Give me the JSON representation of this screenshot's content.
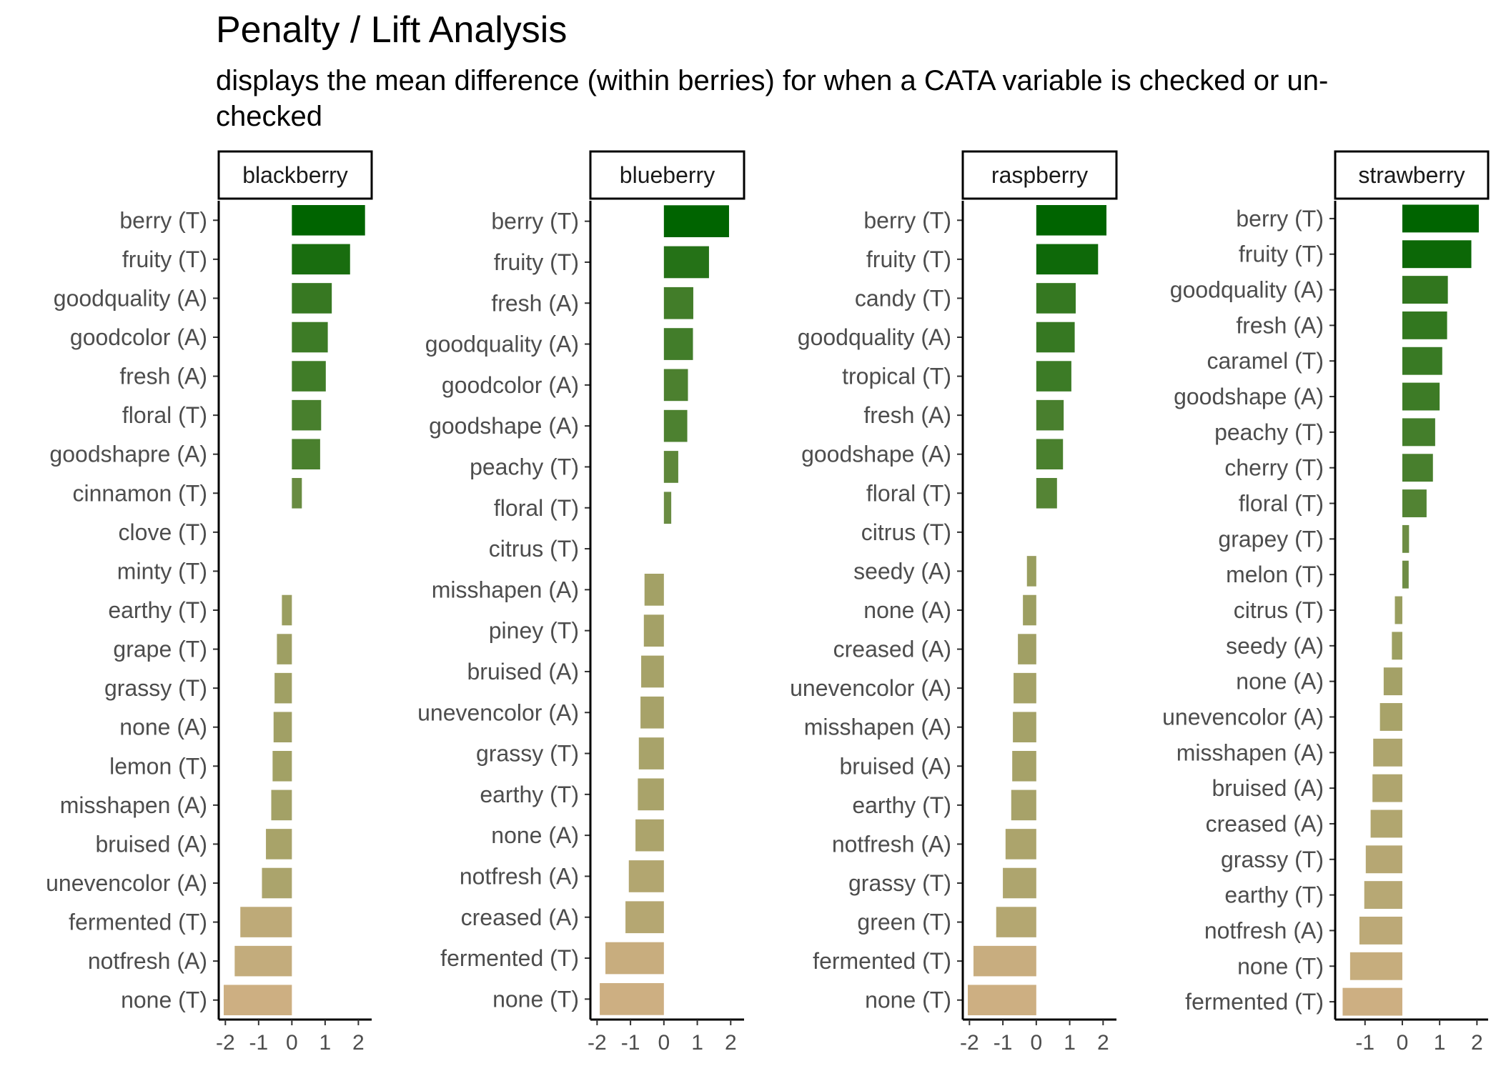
{
  "title": "Penalty / Lift Analysis",
  "subtitle": "displays the mean difference (within berries) for when a CATA variable is checked or un-checked",
  "chart_data": [
    {
      "type": "bar",
      "orientation": "horizontal",
      "panel": "blackberry",
      "xlim": [
        -2.2,
        2.4
      ],
      "x_ticks": [
        -2,
        -1,
        0,
        1,
        2
      ],
      "categories": [
        "berry (T)",
        "fruity (T)",
        "goodquality (A)",
        "goodcolor (A)",
        "fresh (A)",
        "floral (T)",
        "goodshapre (A)",
        "cinnamon (T)",
        "clove (T)",
        "minty (T)",
        "earthy (T)",
        "grape (T)",
        "grassy (T)",
        "none (A)",
        "lemon (T)",
        "misshapen (A)",
        "bruised (A)",
        "unevencolor (A)",
        "fermented (T)",
        "notfresh (A)",
        "none (T)"
      ],
      "values": [
        2.2,
        1.75,
        1.2,
        1.08,
        1.02,
        0.88,
        0.85,
        0.3,
        0,
        0,
        -0.3,
        -0.45,
        -0.52,
        -0.55,
        -0.58,
        -0.62,
        -0.78,
        -0.9,
        -1.55,
        -1.72,
        -2.05
      ]
    },
    {
      "type": "bar",
      "orientation": "horizontal",
      "panel": "blueberry",
      "xlim": [
        -2.2,
        2.4
      ],
      "x_ticks": [
        -2,
        -1,
        0,
        1,
        2
      ],
      "categories": [
        "berry (T)",
        "fruity (T)",
        "fresh (A)",
        "goodquality (A)",
        "goodcolor (A)",
        "goodshape (A)",
        "peachy (T)",
        "floral (T)",
        "citrus (T)",
        "misshapen (A)",
        "piney (T)",
        "bruised (A)",
        "unevencolor (A)",
        "grassy (T)",
        "earthy (T)",
        "none (A)",
        "notfresh (A)",
        "creased (A)",
        "fermented (T)",
        "none (T)"
      ],
      "values": [
        1.95,
        1.35,
        0.88,
        0.87,
        0.72,
        0.7,
        0.43,
        0.22,
        0,
        -0.58,
        -0.6,
        -0.68,
        -0.7,
        -0.75,
        -0.78,
        -0.85,
        -1.05,
        -1.15,
        -1.75,
        -1.92
      ]
    },
    {
      "type": "bar",
      "orientation": "horizontal",
      "panel": "raspberry",
      "xlim": [
        -2.2,
        2.4
      ],
      "x_ticks": [
        -2,
        -1,
        0,
        1,
        2
      ],
      "categories": [
        "berry (T)",
        "fruity (T)",
        "candy (T)",
        "goodquality (A)",
        "tropical (T)",
        "fresh (A)",
        "goodshape (A)",
        "floral (T)",
        "citrus (T)",
        "seedy (A)",
        "none (A)",
        "creased (A)",
        "unevencolor (A)",
        "misshapen (A)",
        "bruised (A)",
        "earthy (T)",
        "notfresh (A)",
        "grassy (T)",
        "green (T)",
        "fermented (T)",
        "none (T)"
      ],
      "values": [
        2.1,
        1.85,
        1.18,
        1.15,
        1.05,
        0.82,
        0.8,
        0.62,
        0,
        -0.28,
        -0.4,
        -0.55,
        -0.68,
        -0.7,
        -0.72,
        -0.75,
        -0.92,
        -1.0,
        -1.2,
        -1.88,
        -2.05
      ]
    },
    {
      "type": "bar",
      "orientation": "horizontal",
      "panel": "strawberry",
      "xlim": [
        -1.8,
        2.3
      ],
      "x_ticks": [
        -1,
        0,
        1,
        2
      ],
      "categories": [
        "berry (T)",
        "fruity (T)",
        "goodquality (A)",
        "fresh (A)",
        "caramel (T)",
        "goodshape (A)",
        "peachy (T)",
        "cherry (T)",
        "floral (T)",
        "grapey (T)",
        "melon (T)",
        "citrus (T)",
        "seedy (A)",
        "none (A)",
        "unevencolor (A)",
        "misshapen (A)",
        "bruised (A)",
        "creased (A)",
        "grassy (T)",
        "earthy (T)",
        "notfresh (A)",
        "none (T)",
        "fermented (T)"
      ],
      "values": [
        2.05,
        1.85,
        1.22,
        1.2,
        1.07,
        1.0,
        0.88,
        0.82,
        0.65,
        0.18,
        0.17,
        -0.2,
        -0.28,
        -0.5,
        -0.6,
        -0.78,
        -0.8,
        -0.85,
        -0.98,
        -1.02,
        -1.15,
        -1.4,
        -1.6
      ]
    }
  ]
}
